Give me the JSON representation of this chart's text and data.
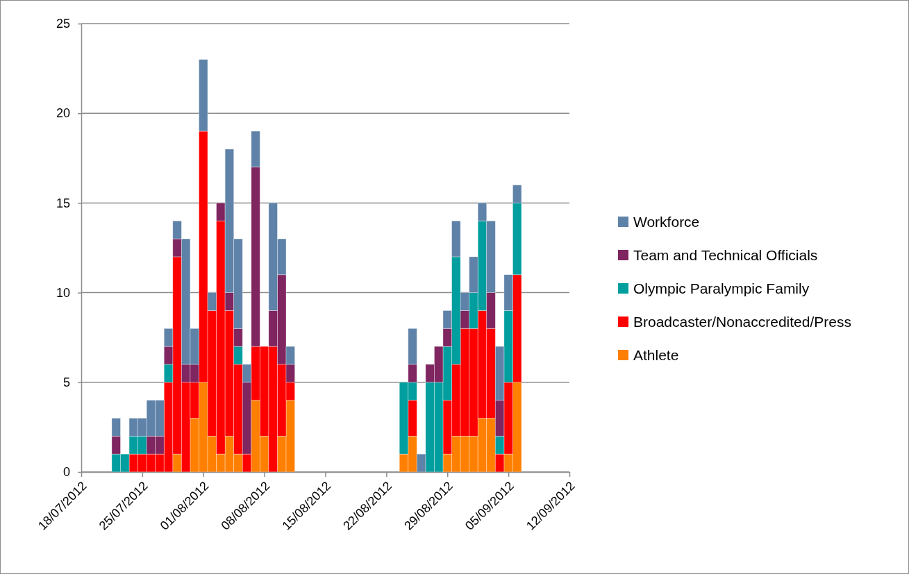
{
  "chart_data": {
    "type": "bar",
    "stacked": true,
    "x": [
      "2012-07-22",
      "2012-07-23",
      "2012-07-24",
      "2012-07-25",
      "2012-07-26",
      "2012-07-27",
      "2012-07-28",
      "2012-07-29",
      "2012-07-30",
      "2012-07-31",
      "2012-08-01",
      "2012-08-02",
      "2012-08-03",
      "2012-08-04",
      "2012-08-05",
      "2012-08-06",
      "2012-08-07",
      "2012-08-08",
      "2012-08-09",
      "2012-08-10",
      "2012-08-11",
      "2012-08-24",
      "2012-08-25",
      "2012-08-26",
      "2012-08-27",
      "2012-08-28",
      "2012-08-29",
      "2012-08-30",
      "2012-08-31",
      "2012-09-01",
      "2012-09-02",
      "2012-09-03",
      "2012-09-04",
      "2012-09-05",
      "2012-09-06"
    ],
    "series": [
      {
        "name": "Athlete",
        "color": "#ff7f00",
        "values": [
          0,
          0,
          0,
          0,
          0,
          0,
          0,
          1,
          0,
          3,
          5,
          2,
          1,
          2,
          1,
          0,
          4,
          2,
          0,
          2,
          4,
          1,
          2,
          0,
          0,
          0,
          1,
          2,
          2,
          2,
          3,
          3,
          0,
          1,
          5
        ]
      },
      {
        "name": "Broadcaster/Nonaccredited/Press",
        "color": "#ff0000",
        "values": [
          0,
          0,
          1,
          1,
          1,
          1,
          5,
          11,
          5,
          2,
          14,
          7,
          13,
          7,
          5,
          1,
          3,
          5,
          7,
          4,
          1,
          0,
          2,
          0,
          0,
          0,
          3,
          4,
          6,
          6,
          6,
          5,
          1,
          4,
          6
        ]
      },
      {
        "name": "Olympic Paralympic Family",
        "color": "#009e9e",
        "values": [
          1,
          1,
          1,
          1,
          0,
          0,
          1,
          0,
          0,
          0,
          0,
          0,
          0,
          0,
          1,
          0,
          0,
          0,
          0,
          0,
          0,
          4,
          1,
          0,
          5,
          5,
          3,
          6,
          0,
          2,
          5,
          0,
          1,
          4,
          4
        ]
      },
      {
        "name": "Team and Technical Officials",
        "color": "#7f2560",
        "values": [
          1,
          0,
          0,
          0,
          1,
          1,
          1,
          1,
          1,
          1,
          0,
          0,
          1,
          1,
          1,
          4,
          10,
          0,
          2,
          5,
          1,
          0,
          1,
          0,
          1,
          2,
          1,
          0,
          1,
          0,
          0,
          2,
          2,
          0,
          0
        ]
      },
      {
        "name": "Workforce",
        "color": "#5f82a8",
        "values": [
          1,
          0,
          1,
          1,
          2,
          2,
          1,
          1,
          7,
          2,
          4,
          1,
          0,
          8,
          5,
          1,
          2,
          0,
          6,
          2,
          1,
          0,
          2,
          1,
          0,
          0,
          1,
          2,
          1,
          2,
          1,
          4,
          3,
          2,
          1
        ]
      }
    ],
    "xlim": [
      "2012-07-18",
      "2012-09-12"
    ],
    "xticks": [
      {
        "value": "2012-07-18",
        "label": "18/07/2012"
      },
      {
        "value": "2012-07-25",
        "label": "25/07/2012"
      },
      {
        "value": "2012-08-01",
        "label": "01/08/2012"
      },
      {
        "value": "2012-08-08",
        "label": "08/08/2012"
      },
      {
        "value": "2012-08-15",
        "label": "15/08/2012"
      },
      {
        "value": "2012-08-22",
        "label": "22/08/2012"
      },
      {
        "value": "2012-08-29",
        "label": "29/08/2012"
      },
      {
        "value": "2012-09-05",
        "label": "05/09/2012"
      },
      {
        "value": "2012-09-12",
        "label": "12/09/2012"
      }
    ],
    "ylim": [
      0,
      25
    ],
    "yticks": [
      0,
      5,
      10,
      15,
      20,
      25
    ],
    "grid": "y",
    "legend": "right"
  }
}
